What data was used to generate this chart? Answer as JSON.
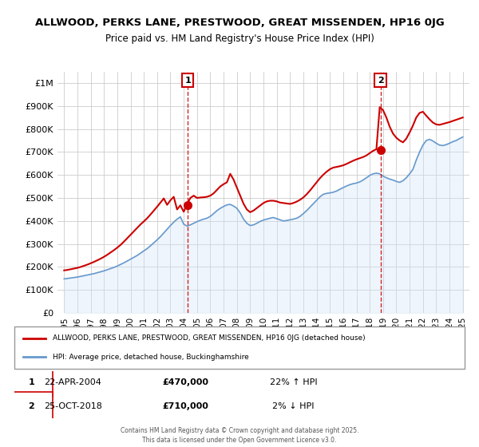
{
  "title_line1": "ALLWOOD, PERKS LANE, PRESTWOOD, GREAT MISSENDEN, HP16 0JG",
  "title_line2": "Price paid vs. HM Land Registry's House Price Index (HPI)",
  "xlabel": "",
  "ylabel": "",
  "ylim": [
    0,
    1050000
  ],
  "xlim": [
    1994.5,
    2025.5
  ],
  "yticks": [
    0,
    100000,
    200000,
    300000,
    400000,
    500000,
    600000,
    700000,
    800000,
    900000,
    1000000
  ],
  "ytick_labels": [
    "£0",
    "£100K",
    "£200K",
    "£300K",
    "£400K",
    "£500K",
    "£600K",
    "£700K",
    "£800K",
    "£900K",
    "£1M"
  ],
  "xticks": [
    1995,
    1996,
    1997,
    1998,
    1999,
    2000,
    2001,
    2002,
    2003,
    2004,
    2005,
    2006,
    2007,
    2008,
    2009,
    2010,
    2011,
    2012,
    2013,
    2014,
    2015,
    2016,
    2017,
    2018,
    2019,
    2020,
    2021,
    2022,
    2023,
    2024,
    2025
  ],
  "red_line_color": "#cc0000",
  "blue_line_color": "#6699cc",
  "fill_color": "#d0e4f7",
  "grid_color": "#cccccc",
  "background_color": "#ffffff",
  "sale1_x": 2004.31,
  "sale1_y": 470000,
  "sale1_label": "1",
  "sale2_x": 2018.81,
  "sale2_y": 710000,
  "sale2_label": "2",
  "legend_red_label": "ALLWOOD, PERKS LANE, PRESTWOOD, GREAT MISSENDEN, HP16 0JG (detached house)",
  "legend_blue_label": "HPI: Average price, detached house, Buckinghamshire",
  "table_row1": [
    "1",
    "22-APR-2004",
    "£470,000",
    "22% ↑ HPI"
  ],
  "table_row2": [
    "2",
    "25-OCT-2018",
    "£710,000",
    "2% ↓ HPI"
  ],
  "footer": "Contains HM Land Registry data © Crown copyright and database right 2025.\nThis data is licensed under the Open Government Licence v3.0.",
  "hpi_years": [
    1995,
    1995.25,
    1995.5,
    1995.75,
    1996,
    1996.25,
    1996.5,
    1996.75,
    1997,
    1997.25,
    1997.5,
    1997.75,
    1998,
    1998.25,
    1998.5,
    1998.75,
    1999,
    1999.25,
    1999.5,
    1999.75,
    2000,
    2000.25,
    2000.5,
    2000.75,
    2001,
    2001.25,
    2001.5,
    2001.75,
    2002,
    2002.25,
    2002.5,
    2002.75,
    2003,
    2003.25,
    2003.5,
    2003.75,
    2004,
    2004.25,
    2004.5,
    2004.75,
    2005,
    2005.25,
    2005.5,
    2005.75,
    2006,
    2006.25,
    2006.5,
    2006.75,
    2007,
    2007.25,
    2007.5,
    2007.75,
    2008,
    2008.25,
    2008.5,
    2008.75,
    2009,
    2009.25,
    2009.5,
    2009.75,
    2010,
    2010.25,
    2010.5,
    2010.75,
    2011,
    2011.25,
    2011.5,
    2011.75,
    2012,
    2012.25,
    2012.5,
    2012.75,
    2013,
    2013.25,
    2013.5,
    2013.75,
    2014,
    2014.25,
    2014.5,
    2014.75,
    2015,
    2015.25,
    2015.5,
    2015.75,
    2016,
    2016.25,
    2016.5,
    2016.75,
    2017,
    2017.25,
    2017.5,
    2017.75,
    2018,
    2018.25,
    2018.5,
    2018.75,
    2019,
    2019.25,
    2019.5,
    2019.75,
    2020,
    2020.25,
    2020.5,
    2020.75,
    2021,
    2021.25,
    2021.5,
    2021.75,
    2022,
    2022.25,
    2022.5,
    2022.75,
    2023,
    2023.25,
    2023.5,
    2023.75,
    2024,
    2024.25,
    2024.5,
    2024.75,
    2025
  ],
  "hpi_values": [
    148000,
    150000,
    152000,
    154000,
    156000,
    159000,
    162000,
    165000,
    168000,
    171000,
    175000,
    179000,
    183000,
    188000,
    193000,
    198000,
    204000,
    211000,
    218000,
    226000,
    234000,
    242000,
    250000,
    260000,
    270000,
    280000,
    292000,
    305000,
    318000,
    332000,
    348000,
    364000,
    380000,
    395000,
    408000,
    418000,
    386000,
    378000,
    383000,
    390000,
    397000,
    403000,
    408000,
    412000,
    420000,
    432000,
    445000,
    455000,
    463000,
    470000,
    472000,
    465000,
    455000,
    435000,
    408000,
    390000,
    380000,
    383000,
    390000,
    398000,
    404000,
    408000,
    412000,
    415000,
    410000,
    405000,
    400000,
    402000,
    405000,
    408000,
    412000,
    420000,
    432000,
    445000,
    460000,
    475000,
    490000,
    505000,
    516000,
    520000,
    522000,
    525000,
    530000,
    538000,
    545000,
    552000,
    558000,
    562000,
    565000,
    570000,
    578000,
    588000,
    598000,
    605000,
    608000,
    605000,
    595000,
    588000,
    582000,
    578000,
    572000,
    568000,
    575000,
    588000,
    605000,
    625000,
    665000,
    700000,
    730000,
    750000,
    755000,
    748000,
    738000,
    730000,
    728000,
    732000,
    738000,
    745000,
    750000,
    758000,
    765000
  ],
  "red_years": [
    1995,
    1995.25,
    1995.5,
    1995.75,
    1996,
    1996.25,
    1996.5,
    1996.75,
    1997,
    1997.25,
    1997.5,
    1997.75,
    1998,
    1998.25,
    1998.5,
    1998.75,
    1999,
    1999.25,
    1999.5,
    1999.75,
    2000,
    2000.25,
    2000.5,
    2000.75,
    2001,
    2001.25,
    2001.5,
    2001.75,
    2002,
    2002.25,
    2002.5,
    2002.75,
    2003,
    2003.25,
    2003.5,
    2003.75,
    2004,
    2004.25,
    2004.5,
    2004.75,
    2005,
    2005.25,
    2005.5,
    2005.75,
    2006,
    2006.25,
    2006.5,
    2006.75,
    2007,
    2007.25,
    2007.5,
    2007.75,
    2008,
    2008.25,
    2008.5,
    2008.75,
    2009,
    2009.25,
    2009.5,
    2009.75,
    2010,
    2010.25,
    2010.5,
    2010.75,
    2011,
    2011.25,
    2011.5,
    2011.75,
    2012,
    2012.25,
    2012.5,
    2012.75,
    2013,
    2013.25,
    2013.5,
    2013.75,
    2014,
    2014.25,
    2014.5,
    2014.75,
    2015,
    2015.25,
    2015.5,
    2015.75,
    2016,
    2016.25,
    2016.5,
    2016.75,
    2017,
    2017.25,
    2017.5,
    2017.75,
    2018,
    2018.25,
    2018.5,
    2018.75,
    2019,
    2019.25,
    2019.5,
    2019.75,
    2020,
    2020.25,
    2020.5,
    2020.75,
    2021,
    2021.25,
    2021.5,
    2021.75,
    2022,
    2022.25,
    2022.5,
    2022.75,
    2023,
    2023.25,
    2023.5,
    2023.75,
    2024,
    2024.25,
    2024.5,
    2024.75,
    2025
  ],
  "red_values": [
    185000,
    187000,
    190000,
    193000,
    196000,
    200000,
    205000,
    210000,
    216000,
    222000,
    229000,
    236000,
    244000,
    253000,
    263000,
    273000,
    284000,
    296000,
    310000,
    325000,
    340000,
    355000,
    370000,
    385000,
    398000,
    412000,
    428000,
    445000,
    462000,
    480000,
    498000,
    470000,
    490000,
    505000,
    450000,
    468000,
    440000,
    472000,
    500000,
    510000,
    500000,
    502000,
    503000,
    505000,
    510000,
    520000,
    535000,
    550000,
    560000,
    568000,
    605000,
    580000,
    545000,
    510000,
    475000,
    450000,
    438000,
    445000,
    456000,
    467000,
    478000,
    485000,
    488000,
    488000,
    485000,
    480000,
    478000,
    476000,
    474000,
    478000,
    484000,
    492000,
    502000,
    516000,
    532000,
    550000,
    568000,
    586000,
    601000,
    614000,
    625000,
    632000,
    635000,
    638000,
    642000,
    648000,
    655000,
    662000,
    668000,
    673000,
    678000,
    685000,
    695000,
    705000,
    712000,
    895000,
    882000,
    850000,
    810000,
    780000,
    762000,
    750000,
    742000,
    758000,
    785000,
    815000,
    850000,
    870000,
    875000,
    858000,
    842000,
    828000,
    820000,
    818000,
    822000,
    826000,
    830000,
    835000,
    840000,
    845000,
    850000
  ]
}
